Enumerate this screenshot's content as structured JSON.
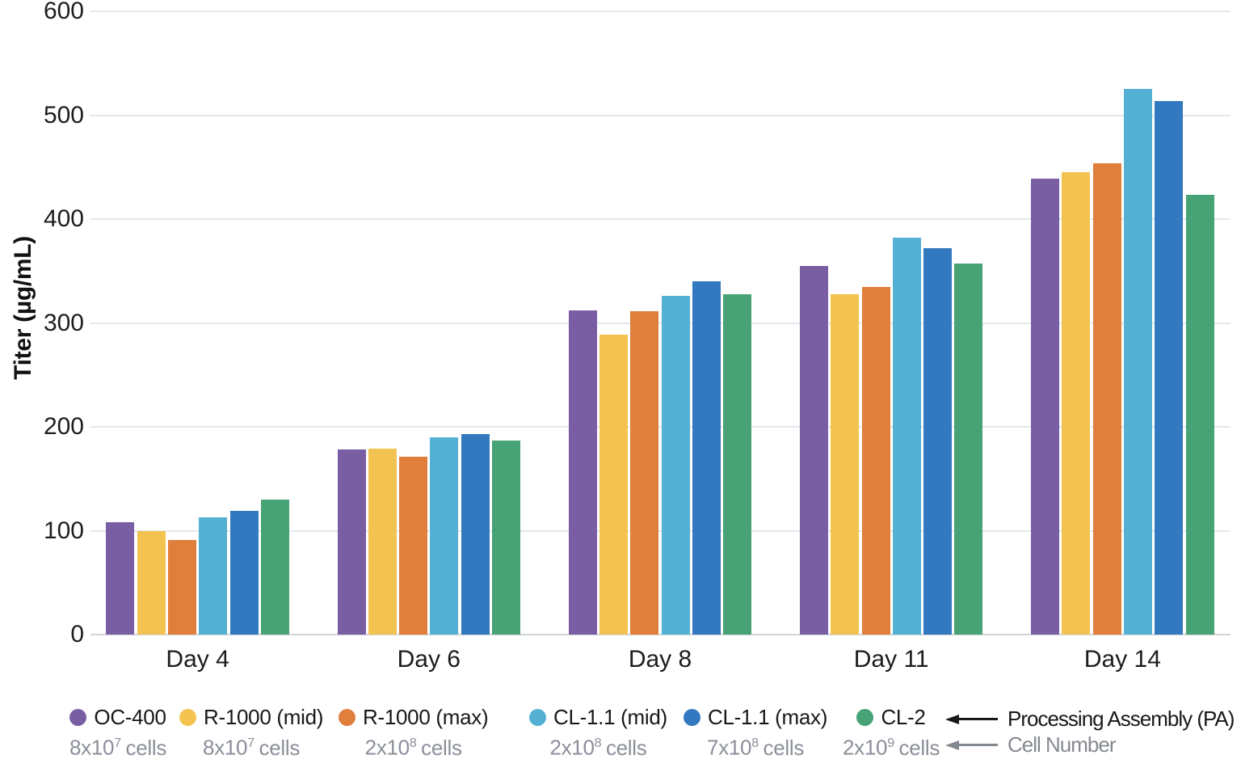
{
  "chart_data": {
    "type": "bar",
    "title": "",
    "xlabel": "",
    "ylabel": "Titer (µg/mL)",
    "ylim": [
      0,
      600
    ],
    "yticks": [
      0,
      100,
      200,
      300,
      400,
      500,
      600
    ],
    "grid": true,
    "legend_position": "bottom",
    "categories": [
      "Day 4",
      "Day 6",
      "Day 8",
      "Day 11",
      "Day 14"
    ],
    "series": [
      {
        "name": "OC-400",
        "cell_number": "8x10^7 cells",
        "color": "#7A5EA3",
        "values": [
          108,
          178,
          312,
          355,
          439
        ]
      },
      {
        "name": "R-1000 (mid)",
        "cell_number": "8x10^7 cells",
        "color": "#F2C351",
        "values": [
          100,
          179,
          289,
          328,
          445
        ]
      },
      {
        "name": "R-1000 (max)",
        "cell_number": "2x10^8 cells",
        "color": "#E07E3C",
        "values": [
          91,
          171,
          311,
          335,
          454
        ]
      },
      {
        "name": "CL-1.1 (mid)",
        "cell_number": "2x10^8 cells",
        "color": "#54B1D4",
        "values": [
          113,
          190,
          326,
          382,
          525
        ]
      },
      {
        "name": "CL-1.1 (max)",
        "cell_number": "7x10^8 cells",
        "color": "#3379BF",
        "values": [
          119,
          193,
          340,
          372,
          514
        ]
      },
      {
        "name": "CL-2",
        "cell_number": "2x10^9 cells",
        "color": "#47A276",
        "values": [
          130,
          187,
          328,
          357,
          423
        ]
      }
    ]
  },
  "legend": {
    "annotations": [
      {
        "label": "Processing Assembly (PA)",
        "style": "pa"
      },
      {
        "label": "Cell Number",
        "style": "cells"
      }
    ]
  },
  "colors": {
    "gridline": "#e3e7ee",
    "baseline": "#d2d5da",
    "text": "#1d1d1f",
    "muted_text": "#8b8f99",
    "arrow_black": "#17181a",
    "arrow_gray": "#83878e"
  }
}
